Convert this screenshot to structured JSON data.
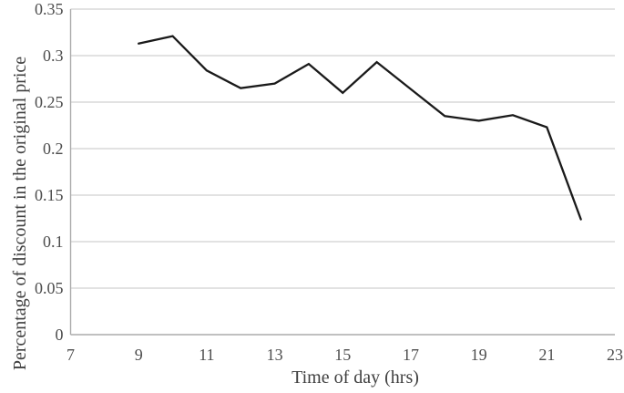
{
  "chart_data": {
    "type": "line",
    "title": "",
    "xlabel": "Time of day (hrs)",
    "ylabel": "Percentage of discount in the original price",
    "x": [
      9,
      10,
      11,
      12,
      13,
      14,
      15,
      16,
      17,
      18,
      19,
      20,
      21,
      22
    ],
    "values": [
      0.313,
      0.321,
      0.284,
      0.265,
      0.27,
      0.291,
      0.26,
      0.293,
      0.264,
      0.235,
      0.23,
      0.236,
      0.223,
      0.124
    ],
    "xlim": [
      7,
      23
    ],
    "ylim": [
      0,
      0.35
    ],
    "x_ticks": [
      7,
      9,
      11,
      13,
      15,
      17,
      19,
      21,
      23
    ],
    "x_tick_labels": [
      "7",
      "9",
      "11",
      "13",
      "15",
      "17",
      "19",
      "21",
      "23"
    ],
    "y_ticks": [
      0,
      0.05,
      0.1,
      0.15,
      0.2,
      0.25,
      0.3,
      0.35
    ],
    "y_tick_labels": [
      "0",
      "0.05",
      "0.1",
      "0.15",
      "0.2",
      "0.25",
      "0.3",
      "0.35"
    ],
    "grid": "horizontal",
    "legend_position": "none",
    "line_color": "#1a1a1a",
    "gridline_color": "#d9d9d9",
    "axis_line_color": "#ababab",
    "tick_label_color": "#4d4d4d"
  }
}
